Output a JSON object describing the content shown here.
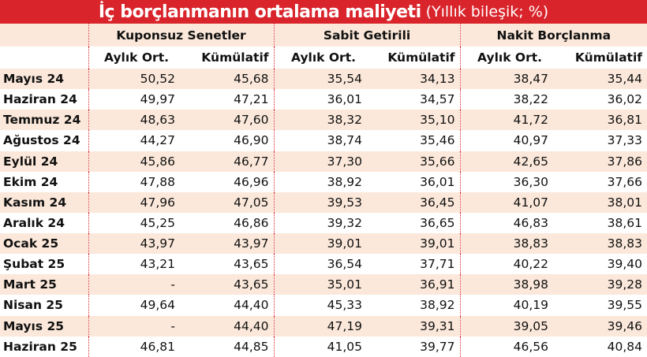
{
  "title": {
    "main": "İç borçlanmanın ortalama maliyeti",
    "sub": "(Yıllık bileşik; %)"
  },
  "groups": [
    "Kuponsuz Senetler",
    "Sabit Getirili",
    "Nakit Borçlanma"
  ],
  "subheaders": [
    "Aylık Ort.",
    "Kümülatif",
    "Aylık Ort.",
    "Kümülatif",
    "Aylık Ort.",
    "Kümülatif"
  ],
  "rows": [
    {
      "month": "Mayıs 24",
      "values": [
        "50,52",
        "45,68",
        "35,54",
        "34,13",
        "38,47",
        "35,44"
      ]
    },
    {
      "month": "Haziran 24",
      "values": [
        "49,97",
        "47,21",
        "36,01",
        "34,57",
        "38,22",
        "36,02"
      ]
    },
    {
      "month": "Temmuz 24",
      "values": [
        "48,63",
        "47,60",
        "38,32",
        "35,10",
        "41,72",
        "36,81"
      ]
    },
    {
      "month": "Ağustos 24",
      "values": [
        "44,27",
        "46,90",
        "38,74",
        "35,46",
        "40,97",
        "37,33"
      ]
    },
    {
      "month": "Eylül 24",
      "values": [
        "45,86",
        "46,77",
        "37,30",
        "35,66",
        "42,65",
        "37,86"
      ]
    },
    {
      "month": "Ekim 24",
      "values": [
        "47,88",
        "46,96",
        "38,92",
        "36,01",
        "36,30",
        "37,66"
      ]
    },
    {
      "month": "Kasım 24",
      "values": [
        "47,96",
        "47,05",
        "39,53",
        "36,45",
        "41,07",
        "38,01"
      ]
    },
    {
      "month": "Aralık 24",
      "values": [
        "45,25",
        "46,86",
        "39,32",
        "36,65",
        "46,83",
        "38,61"
      ]
    },
    {
      "month": "Ocak 25",
      "values": [
        "43,97",
        "43,97",
        "39,01",
        "39,01",
        "38,83",
        "38,83"
      ]
    },
    {
      "month": "Şubat 25",
      "values": [
        "43,21",
        "43,65",
        "36,54",
        "37,71",
        "40,22",
        "39,40"
      ]
    },
    {
      "month": "Mart 25",
      "values": [
        "-",
        "43,65",
        "35,01",
        "36,91",
        "38,98",
        "39,28"
      ]
    },
    {
      "month": "Nisan 25",
      "values": [
        "49,64",
        "44,40",
        "45,33",
        "38,92",
        "40,19",
        "39,55"
      ]
    },
    {
      "month": "Mayıs 25",
      "values": [
        "-",
        "44,40",
        "47,19",
        "39,31",
        "39,05",
        "39,46"
      ]
    },
    {
      "month": "Haziran 25",
      "values": [
        "46,81",
        "44,85",
        "41,05",
        "39,77",
        "46,56",
        "40,84"
      ]
    }
  ],
  "colors": {
    "title_bg": "#d9242b",
    "stripe": "#fbe8da",
    "separator": "#d9242b"
  }
}
